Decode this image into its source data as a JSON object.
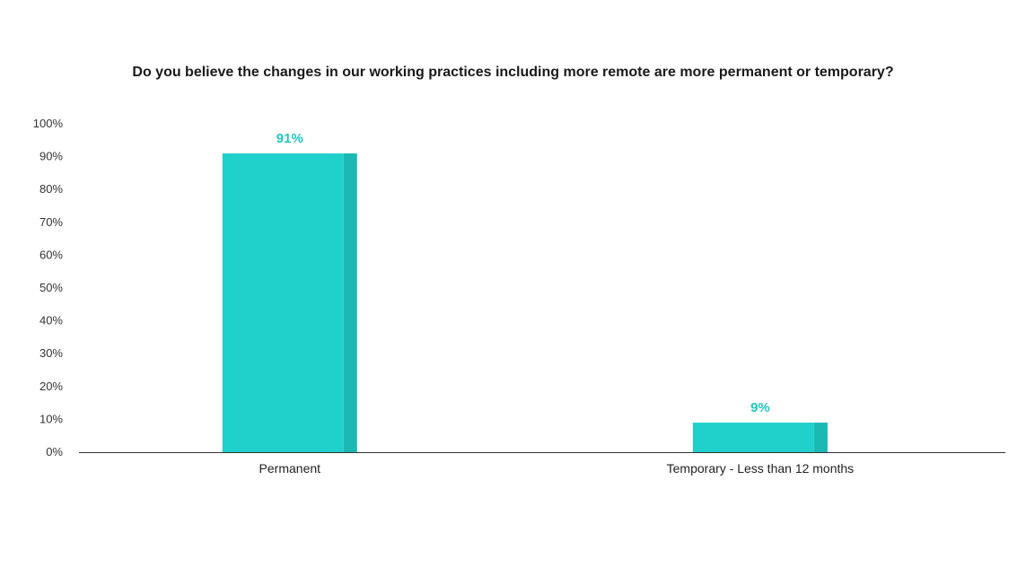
{
  "colors": {
    "bar": "#20d0cb",
    "bar_shade": "#1cb9b4",
    "data_label": "#20c7c2",
    "axis": "#333333"
  },
  "chart_data": {
    "type": "bar",
    "title": "Do you believe the changes in our working practices including more remote are more permanent or temporary?",
    "categories": [
      "Permanent",
      "Temporary - Less than 12 months"
    ],
    "values": [
      91,
      9
    ],
    "data_labels": [
      "91%",
      "9%"
    ],
    "ylim": [
      0,
      100
    ],
    "yticks": [
      0,
      10,
      20,
      30,
      40,
      50,
      60,
      70,
      80,
      90,
      100
    ],
    "ytick_labels": [
      "0%",
      "10%",
      "20%",
      "30%",
      "40%",
      "50%",
      "60%",
      "70%",
      "80%",
      "90%",
      "100%"
    ],
    "xlabel": "",
    "ylabel": "",
    "grid": false,
    "legend": "none"
  }
}
